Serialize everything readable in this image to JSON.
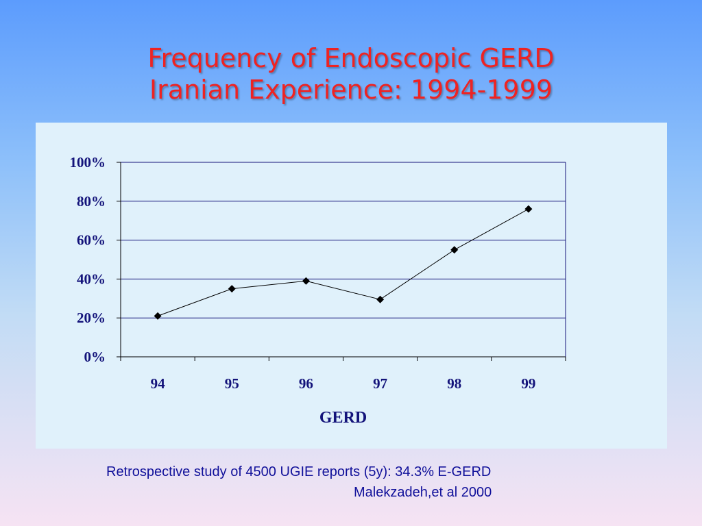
{
  "slide": {
    "title_line1": "Frequency of Endoscopic GERD",
    "title_line2": "Iranian Experience: 1994-1999",
    "footnote": "Retrospective study of 4500 UGIE reports (5y): 34.3% E-GERD",
    "citation": "Malekzadeh,et al 2000"
  },
  "chart_data": {
    "type": "line",
    "categories": [
      "94",
      "95",
      "96",
      "97",
      "98",
      "99"
    ],
    "series": [
      {
        "values": [
          21,
          35,
          39,
          29.5,
          55,
          76
        ]
      }
    ],
    "xlabel": "GERD",
    "ylabel": "",
    "ylim": [
      0,
      100
    ],
    "yticks": [
      "0%",
      "20%",
      "40%",
      "60%",
      "80%",
      "100%"
    ],
    "y_format": "percent",
    "grid": true,
    "legend": false,
    "marker": "diamond",
    "colors": {
      "line": "#000000",
      "marker": "#000000",
      "gridline": "#13137a",
      "axis": "#000000",
      "text": "#13137a"
    }
  }
}
